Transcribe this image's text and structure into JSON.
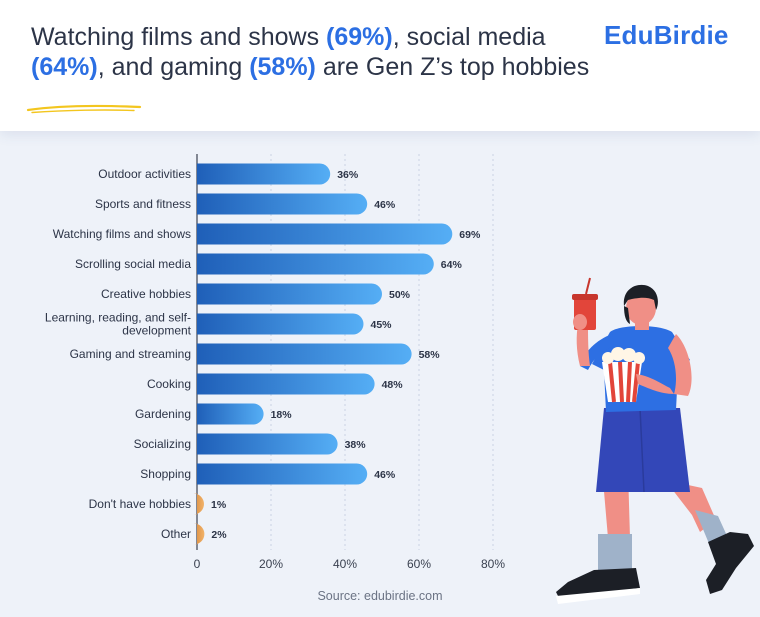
{
  "header": {
    "headline_parts": [
      {
        "text": "Watching films and shows ",
        "highlight": false
      },
      {
        "text": "(69%)",
        "highlight": true
      },
      {
        "text": ", social media ",
        "highlight": false
      },
      {
        "text": "(64%)",
        "highlight": true
      },
      {
        "text": ", and gaming ",
        "highlight": false
      },
      {
        "text": "(58%)",
        "highlight": true
      },
      {
        "text": " are Gen Z’s top ",
        "highlight": false
      },
      {
        "text": "hobbies",
        "highlight": false
      }
    ],
    "brand": "EduBirdie"
  },
  "source": "Source: edubirdie.com",
  "colors": {
    "bar_start": "#1f5fb8",
    "bar_end": "#55aef5",
    "bar_alt_start": "#d88a3e",
    "bar_alt_end": "#f2b36a",
    "highlight": "#2c6fe3",
    "underline": "#f3c61f"
  },
  "chart_data": {
    "type": "bar",
    "orientation": "horizontal",
    "categories": [
      [
        "Outdoor activities"
      ],
      [
        "Sports and fitness"
      ],
      [
        "Watching films and shows"
      ],
      [
        "Scrolling social media"
      ],
      [
        "Creative hobbies"
      ],
      [
        "Learning, reading, and self-",
        "development"
      ],
      [
        "Gaming and streaming"
      ],
      [
        "Cooking"
      ],
      [
        "Gardening"
      ],
      [
        "Socializing"
      ],
      [
        "Shopping"
      ],
      [
        "Don't have hobbies"
      ],
      [
        "Other"
      ]
    ],
    "values": [
      36,
      46,
      69,
      64,
      50,
      45,
      58,
      48,
      18,
      38,
      46,
      1,
      2
    ],
    "value_labels": [
      "36%",
      "46%",
      "69%",
      "64%",
      "50%",
      "45%",
      "58%",
      "48%",
      "18%",
      "38%",
      "46%",
      "1%",
      "2%"
    ],
    "alt_color_categories": [
      11,
      12
    ],
    "xlim": [
      0,
      80
    ],
    "x_ticks": [
      0,
      20,
      40,
      60,
      80
    ],
    "x_tick_labels": [
      "0",
      "20%",
      "40%",
      "60%",
      "80%"
    ],
    "grid": true,
    "title": "",
    "xlabel": "",
    "ylabel": ""
  }
}
